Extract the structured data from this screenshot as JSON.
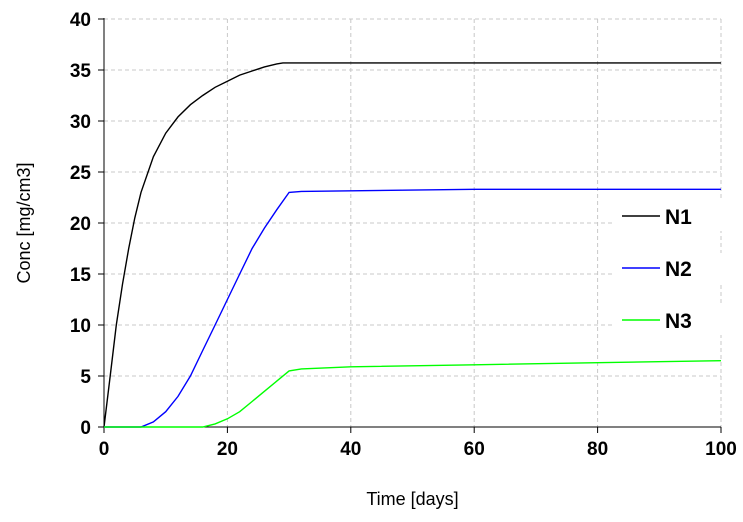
{
  "chart_data": {
    "type": "line",
    "title": "",
    "xlabel": "Time [days]",
    "ylabel": "Conc  [mg/cm3]",
    "xlim": [
      0,
      100
    ],
    "ylim": [
      0,
      40
    ],
    "xticks": [
      0,
      20,
      40,
      60,
      80,
      100
    ],
    "yticks": [
      0,
      5,
      10,
      15,
      20,
      25,
      30,
      35,
      40
    ],
    "grid": true,
    "legend_position": "right",
    "series": [
      {
        "name": "N1",
        "color": "#000000",
        "x": [
          0,
          1,
          2,
          3,
          4,
          5,
          6,
          8,
          10,
          12,
          14,
          16,
          18,
          20,
          22,
          24,
          26,
          28,
          29,
          100
        ],
        "y": [
          0,
          5,
          10,
          14,
          17.5,
          20.5,
          23,
          26.5,
          28.8,
          30.4,
          31.6,
          32.5,
          33.3,
          33.9,
          34.5,
          34.9,
          35.3,
          35.6,
          35.7,
          35.7
        ]
      },
      {
        "name": "N2",
        "color": "#0000ff",
        "x": [
          0,
          6,
          8,
          10,
          12,
          14,
          16,
          18,
          20,
          22,
          24,
          26,
          28,
          30,
          32,
          60,
          100
        ],
        "y": [
          0,
          0,
          0.5,
          1.5,
          3,
          5,
          7.5,
          10,
          12.5,
          15,
          17.5,
          19.5,
          21.3,
          23,
          23.1,
          23.3,
          23.3
        ]
      },
      {
        "name": "N3",
        "color": "#00ff00",
        "x": [
          0,
          16,
          18,
          20,
          22,
          24,
          26,
          28,
          30,
          32,
          40,
          60,
          80,
          100
        ],
        "y": [
          0,
          0,
          0.3,
          0.8,
          1.5,
          2.5,
          3.5,
          4.5,
          5.5,
          5.7,
          5.9,
          6.1,
          6.3,
          6.5
        ]
      }
    ]
  }
}
